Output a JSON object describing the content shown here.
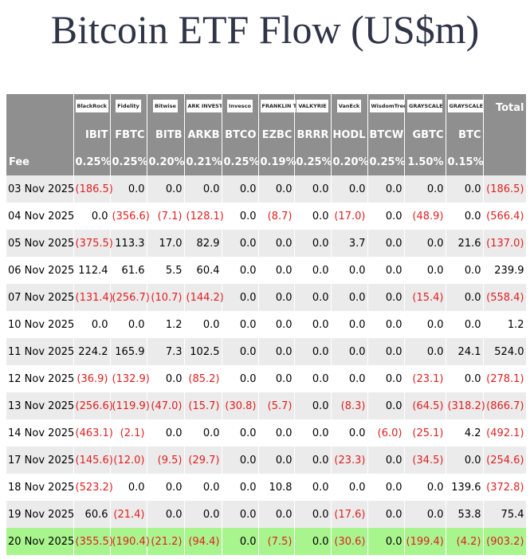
{
  "title": "Bitcoin ETF Flow (US$m)",
  "table": {
    "logos": [
      "BlackRock",
      "Fidelity",
      "Bitwise",
      "ARK INVEST",
      "Invesco",
      "FRANKLIN TEMPLETON",
      "VALKYRIE",
      "VanEck",
      "WisdomTree",
      "GRAYSCALE",
      "GRAYSCALE"
    ],
    "total_label": "Total",
    "tickers": [
      "IBIT",
      "FBTC",
      "BITB",
      "ARKB",
      "BTCO",
      "EZBC",
      "BRRR",
      "HODL",
      "BTCW",
      "GBTC",
      "BTC"
    ],
    "fee_label": "Fee",
    "fees": [
      "0.25%",
      "0.25%",
      "0.20%",
      "0.21%",
      "0.25%",
      "0.19%",
      "0.25%",
      "0.20%",
      "0.25%",
      "1.50%",
      "0.15%"
    ],
    "rows": [
      [
        "03 Nov 2025",
        "(186.5)",
        "0.0",
        "0.0",
        "0.0",
        "0.0",
        "0.0",
        "0.0",
        "0.0",
        "0.0",
        "0.0",
        "0.0",
        "(186.5)"
      ],
      [
        "04 Nov 2025",
        "0.0",
        "(356.6)",
        "(7.1)",
        "(128.1)",
        "0.0",
        "(8.7)",
        "0.0",
        "(17.0)",
        "0.0",
        "(48.9)",
        "0.0",
        "(566.4)"
      ],
      [
        "05 Nov 2025",
        "(375.5)",
        "113.3",
        "17.0",
        "82.9",
        "0.0",
        "0.0",
        "0.0",
        "3.7",
        "0.0",
        "0.0",
        "21.6",
        "(137.0)"
      ],
      [
        "06 Nov 2025",
        "112.4",
        "61.6",
        "5.5",
        "60.4",
        "0.0",
        "0.0",
        "0.0",
        "0.0",
        "0.0",
        "0.0",
        "0.0",
        "239.9"
      ],
      [
        "07 Nov 2025",
        "(131.4)",
        "(256.7)",
        "(10.7)",
        "(144.2)",
        "0.0",
        "0.0",
        "0.0",
        "0.0",
        "0.0",
        "(15.4)",
        "0.0",
        "(558.4)"
      ],
      [
        "10 Nov 2025",
        "0.0",
        "0.0",
        "1.2",
        "0.0",
        "0.0",
        "0.0",
        "0.0",
        "0.0",
        "0.0",
        "0.0",
        "0.0",
        "1.2"
      ],
      [
        "11 Nov 2025",
        "224.2",
        "165.9",
        "7.3",
        "102.5",
        "0.0",
        "0.0",
        "0.0",
        "0.0",
        "0.0",
        "0.0",
        "24.1",
        "524.0"
      ],
      [
        "12 Nov 2025",
        "(36.9)",
        "(132.9)",
        "0.0",
        "(85.2)",
        "0.0",
        "0.0",
        "0.0",
        "0.0",
        "0.0",
        "(23.1)",
        "0.0",
        "(278.1)"
      ],
      [
        "13 Nov 2025",
        "(256.6)",
        "(119.9)",
        "(47.0)",
        "(15.7)",
        "(30.8)",
        "(5.7)",
        "0.0",
        "(8.3)",
        "0.0",
        "(64.5)",
        "(318.2)",
        "(866.7)"
      ],
      [
        "14 Nov 2025",
        "(463.1)",
        "(2.1)",
        "0.0",
        "0.0",
        "0.0",
        "0.0",
        "0.0",
        "0.0",
        "(6.0)",
        "(25.1)",
        "4.2",
        "(492.1)"
      ],
      [
        "17 Nov 2025",
        "(145.6)",
        "(12.0)",
        "(9.5)",
        "(29.7)",
        "0.0",
        "0.0",
        "0.0",
        "(23.3)",
        "0.0",
        "(34.5)",
        "0.0",
        "(254.6)"
      ],
      [
        "18 Nov 2025",
        "(523.2)",
        "0.0",
        "0.0",
        "0.0",
        "0.0",
        "10.8",
        "0.0",
        "0.0",
        "0.0",
        "0.0",
        "139.6",
        "(372.8)"
      ],
      [
        "19 Nov 2025",
        "60.6",
        "(21.4)",
        "0.0",
        "0.0",
        "0.0",
        "0.0",
        "0.0",
        "(17.6)",
        "0.0",
        "0.0",
        "53.8",
        "75.4"
      ],
      [
        "20 Nov 2025",
        "(355.5)",
        "(190.4)",
        "(21.2)",
        "(94.4)",
        "0.0",
        "(7.5)",
        "0.0",
        "(30.6)",
        "0.0",
        "(199.4)",
        "(4.2)",
        "(903.2)"
      ]
    ]
  }
}
